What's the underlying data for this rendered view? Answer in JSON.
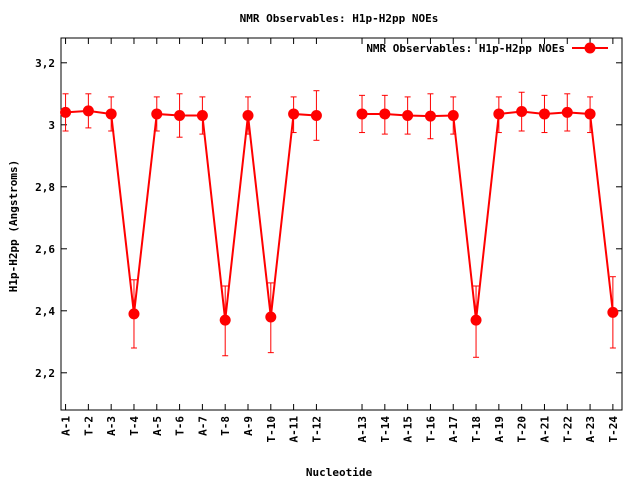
{
  "chart_data": {
    "type": "line",
    "title": "NMR Observables: H1p-H2pp NOEs",
    "xlabel": "Nucleotide",
    "ylabel": "H1p-H2pp (Angstroms)",
    "ylim": [
      2.08,
      3.28
    ],
    "yticks": [
      "2,2",
      "2,4",
      "2,6",
      "2,8",
      "3",
      "3,2"
    ],
    "ytick_values": [
      2.2,
      2.4,
      2.6,
      2.8,
      3.0,
      3.2
    ],
    "grid": false,
    "legend": {
      "position": "top-right",
      "entries": [
        "NMR Observables: H1p-H2pp NOEs"
      ]
    },
    "colors": {
      "series": "#ff0000",
      "axis": "#000000",
      "background": "#ffffff"
    },
    "categories": [
      "A-1",
      "T-2",
      "A-3",
      "T-4",
      "A-5",
      "T-6",
      "A-7",
      "T-8",
      "A-9",
      "T-10",
      "A-11",
      "T-12",
      "A-13",
      "T-14",
      "A-15",
      "T-16",
      "A-17",
      "T-18",
      "A-19",
      "T-20",
      "A-21",
      "T-22",
      "A-23",
      "T-24"
    ],
    "category_positions": [
      1,
      2,
      3,
      4,
      5,
      6,
      7,
      8,
      9,
      10,
      11,
      12,
      14,
      15,
      16,
      17,
      18,
      19,
      20,
      21,
      22,
      23,
      24,
      25
    ],
    "xlim": [
      0.8,
      25.4
    ],
    "series": [
      {
        "name": "NMR Observables: H1p-H2pp NOEs",
        "segments": [
          [
            0,
            11
          ],
          [
            12,
            23
          ]
        ],
        "values": [
          3.04,
          3.045,
          3.035,
          2.39,
          3.035,
          3.03,
          3.03,
          2.37,
          3.03,
          2.38,
          3.035,
          3.03,
          3.035,
          3.035,
          3.03,
          3.028,
          3.03,
          2.37,
          3.035,
          3.043,
          3.035,
          3.04,
          3.035,
          2.395
        ],
        "err_high": [
          3.1,
          3.1,
          3.09,
          2.5,
          3.09,
          3.1,
          3.09,
          2.48,
          3.09,
          2.49,
          3.09,
          3.11,
          3.095,
          3.095,
          3.09,
          3.1,
          3.09,
          2.48,
          3.09,
          3.105,
          3.095,
          3.1,
          3.09,
          2.51
        ],
        "err_low": [
          2.98,
          2.99,
          2.98,
          2.28,
          2.98,
          2.96,
          2.97,
          2.255,
          2.97,
          2.265,
          2.975,
          2.95,
          2.975,
          2.97,
          2.97,
          2.955,
          2.97,
          2.25,
          2.975,
          2.98,
          2.975,
          2.98,
          2.975,
          2.28
        ]
      }
    ]
  }
}
